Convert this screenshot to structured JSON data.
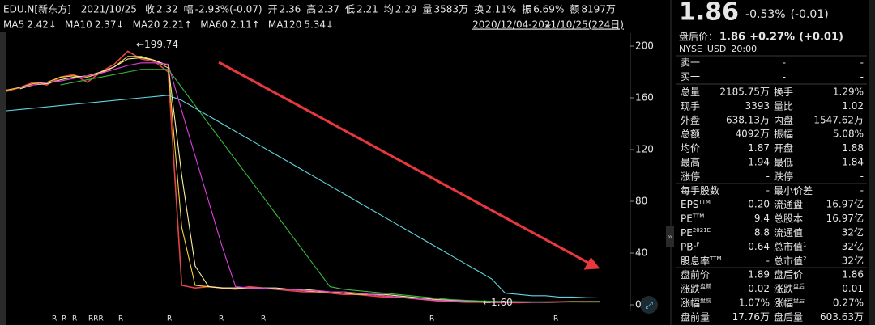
{
  "topbar": {
    "symbol": "EDU.N[新东方]",
    "date": "2021/10/25",
    "items": [
      {
        "label": "收",
        "value": "2.32",
        "color": "#35c759"
      },
      {
        "label": "幅",
        "value": "-2.93%(-0.07)",
        "color": "#35c759"
      },
      {
        "label": "开",
        "value": "2.36",
        "color": "#35c759"
      },
      {
        "label": "高",
        "value": "2.37",
        "color": "#35c759"
      },
      {
        "label": "低",
        "value": "2.21",
        "color": "#35c759"
      },
      {
        "label": "均",
        "value": "2.29",
        "color": "#35c759"
      },
      {
        "label": "量",
        "value": "3583万",
        "color": "#e6e6e6"
      },
      {
        "label": "换",
        "value": "2.11%",
        "color": "#e6e6e6"
      },
      {
        "label": "振",
        "value": "6.69%",
        "color": "#e6e6e6"
      },
      {
        "label": "额",
        "value": "8197万",
        "color": "#e6e6e6"
      }
    ]
  },
  "range": "2020/12/04-2021/10/25(224日)",
  "chart_data": {
    "type": "line",
    "ylim": [
      -5,
      210
    ],
    "yticks": [
      0,
      40,
      80,
      120,
      160,
      200
    ],
    "series": [
      {
        "color": "#e04646",
        "values": [
          165,
          168,
          172,
          170,
          176,
          178,
          172,
          180,
          186,
          196,
          190,
          188,
          180,
          15,
          13,
          14,
          13,
          12,
          14,
          13,
          12,
          11,
          10,
          10,
          9,
          8,
          8,
          7,
          6,
          6,
          5,
          4,
          3,
          2.5,
          2,
          2,
          1.8,
          1.7,
          1.6,
          2,
          2.2,
          2.3,
          2.4,
          2.3,
          2.32
        ]
      },
      {
        "name": "MA5",
        "legend_value": "2.42↓",
        "color": "#f2d43a",
        "values": [
          166,
          168,
          171,
          172,
          176,
          177,
          176,
          179,
          184,
          192,
          192,
          189,
          183,
          60,
          15,
          14,
          13,
          13,
          13,
          13,
          12,
          12,
          11,
          10,
          10,
          9,
          8,
          8,
          7,
          6,
          5,
          4,
          3.5,
          3,
          2.5,
          2.2,
          2,
          1.9,
          1.8,
          1.9,
          2,
          2.2,
          2.3,
          2.35,
          2.42
        ]
      },
      {
        "name": "MA10",
        "legend_value": "2.37↓",
        "color": "#f5f0a0",
        "values": [
          null,
          167,
          170,
          171,
          174,
          176,
          177,
          180,
          184,
          190,
          191,
          189,
          185,
          100,
          30,
          14,
          13,
          13,
          13,
          13,
          13,
          12,
          12,
          11,
          10,
          10,
          9,
          8,
          8,
          7,
          6,
          5,
          4,
          3.5,
          3,
          2.6,
          2.3,
          2.1,
          2,
          1.9,
          1.9,
          2.1,
          2.3,
          2.35,
          2.37
        ]
      },
      {
        "name": "MA20",
        "legend_value": "2.21↑",
        "color": "#e040e0",
        "values": [
          null,
          168,
          170,
          172,
          173,
          175,
          177,
          179,
          182,
          185,
          187,
          187,
          186,
          150,
          115,
          80,
          45,
          14,
          13,
          13,
          12,
          12,
          11,
          11,
          10,
          10,
          9,
          8,
          7,
          6,
          5,
          4,
          3.5,
          3,
          2.6,
          2.2,
          2,
          1.9,
          1.9,
          2,
          2.1,
          2.15,
          2.2,
          2.2,
          2.21
        ]
      },
      {
        "name": "MA60",
        "legend_value": "2.11↑",
        "color": "#3cb83c",
        "values": [
          null,
          null,
          null,
          null,
          170,
          172,
          174,
          176,
          178,
          180,
          182,
          182,
          182,
          168,
          154,
          140,
          126,
          112,
          98,
          84,
          70,
          56,
          42,
          28,
          14,
          12,
          11,
          10,
          9,
          8,
          7,
          6,
          5,
          4,
          3.5,
          3,
          2.8,
          2.6,
          2.4,
          2.3,
          2.2,
          2.2,
          2.15,
          2.1,
          2.11
        ]
      },
      {
        "name": "MA120",
        "legend_value": "5.34↓",
        "color": "#5fd6e0",
        "values": [
          150,
          151,
          152,
          153,
          154,
          155,
          156,
          157,
          158,
          159,
          160,
          161,
          162,
          158,
          152,
          146,
          140,
          134,
          128,
          122,
          116,
          110,
          104,
          98,
          92,
          86,
          80,
          74,
          68,
          62,
          56,
          50,
          44,
          38,
          32,
          26,
          20,
          9,
          8,
          7,
          7,
          6,
          6,
          5.5,
          5.34
        ]
      }
    ],
    "annotations": [
      {
        "label": "←199.74",
        "value": 199.74,
        "color": "#ff4d4d"
      },
      {
        "label": "←1.60",
        "value": 1.6,
        "color": "#9aa0a6"
      }
    ],
    "markers": [
      "R",
      "R",
      "R",
      "RRR",
      "R",
      "R",
      "R",
      "R",
      "R",
      "R"
    ]
  },
  "quote": {
    "price": "1.86",
    "change_pct": "-0.53%",
    "change": "(-0.01)",
    "after_label": "盘后价：",
    "after_price": "1.86",
    "after_pct": "+0.27%",
    "after_change": "(+0.01)",
    "exchange": "NYSE",
    "currency": "USD",
    "time": "20:00",
    "orderbook": [
      {
        "label": "卖一",
        "price": "-",
        "volume": "-"
      },
      {
        "label": "买一",
        "price": "-",
        "volume": "-"
      }
    ],
    "rows": [
      {
        "l1": "总量",
        "v1": "2185.75万",
        "l2": "换手",
        "v2": "1.29%"
      },
      {
        "l1": "现手",
        "v1": "3393",
        "l2": "量比",
        "v2": "1.02"
      },
      {
        "l1": "外盘",
        "v1": "638.13万",
        "c1": "#ff4d4d",
        "l2": "内盘",
        "v2": "1547.62万",
        "c2": "#35c759"
      },
      {
        "l1": "总额",
        "v1": "4092万",
        "l2": "振幅",
        "v2": "5.08%"
      },
      {
        "l1": "均价",
        "v1": "1.87",
        "c1": "#ff4d4d",
        "l2": "开盘",
        "v2": "1.88",
        "c2": "#ff4d4d"
      },
      {
        "l1": "最高",
        "v1": "1.94",
        "c1": "#ff4d4d",
        "l2": "最低",
        "v2": "1.84",
        "c2": "#35c759"
      },
      {
        "l1": "涨停",
        "v1": "-",
        "l2": "跌停",
        "v2": "-"
      },
      {
        "l1": "每手股数",
        "v1": "-",
        "l2": "最小价差",
        "v2": "-"
      },
      {
        "l1": "EPS",
        "s1": "TTM",
        "v1": "0.20",
        "l2": "流通盘",
        "v2": "16.97亿"
      },
      {
        "l1": "PE",
        "s1": "TTM",
        "v1": "9.4",
        "l2": "总股本",
        "v2": "16.97亿"
      },
      {
        "l1": "PE",
        "s1": "2021E",
        "v1": "8.8",
        "l2": "流通值",
        "v2": "32亿"
      },
      {
        "l1": "PB",
        "s1": "LF",
        "v1": "0.64",
        "l2": "总市值",
        "s2": "1",
        "v2": "32亿"
      },
      {
        "l1": "股息率",
        "s1": "TTM",
        "v1": "-",
        "l2": "总市值",
        "s2": "2",
        "v2": "32亿"
      },
      {
        "l1": "盘前价",
        "v1": "1.89",
        "c1": "#ff4d4d",
        "l2": "盘后价",
        "v2": "1.86"
      },
      {
        "l1": "涨跌",
        "s1": "盘前",
        "v1": "0.02",
        "c1": "#ff4d4d",
        "l2": "涨跌",
        "s2": "盘后",
        "v2": "0.01",
        "c2": "#ff4d4d"
      },
      {
        "l1": "涨幅",
        "s1": "盘前",
        "v1": "1.07%",
        "c1": "#ff4d4d",
        "l2": "涨幅",
        "s2": "盘后",
        "v2": "0.27%",
        "c2": "#ff4d4d"
      },
      {
        "l1": "盘前量",
        "v1": "17.76万",
        "l2": "盘后量",
        "v2": "603.63万"
      }
    ]
  }
}
